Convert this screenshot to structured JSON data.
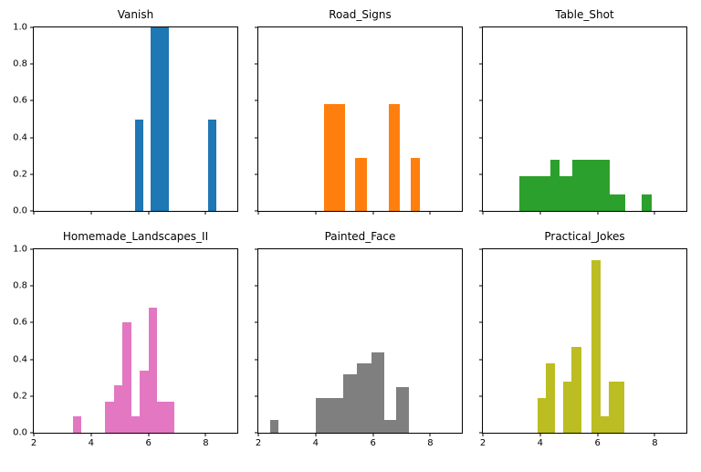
{
  "figure": {
    "background": "#ffffff"
  },
  "chart_data": {
    "type": "histogram",
    "layout": "2x3 subplot grid, shared axes, tick labels only on outer left column and bottom row",
    "xlim": [
      2,
      9.1
    ],
    "ylim": [
      0,
      1.0
    ],
    "xticks": [
      2,
      4,
      6,
      8
    ],
    "xticklabels": [
      "2",
      "4",
      "6",
      "8"
    ],
    "yticks": [
      0,
      0.2,
      0.4,
      0.6,
      0.8,
      1.0
    ],
    "yticklabels": [
      "0.0",
      "0.2",
      "0.4",
      "0.6",
      "0.8",
      "1.0"
    ],
    "grid": false,
    "legend": false,
    "subplots": [
      {
        "title": "Vanish",
        "color": "#1f77b4",
        "bars": [
          {
            "x": 5.52,
            "w": 0.3,
            "h": 0.5
          },
          {
            "x": 6.06,
            "w": 0.66,
            "h": 1.0
          },
          {
            "x": 8.08,
            "w": 0.3,
            "h": 0.5
          }
        ]
      },
      {
        "title": "Road_Signs",
        "color": "#ff7f0e",
        "bars": [
          {
            "x": 4.29,
            "w": 0.72,
            "h": 0.58
          },
          {
            "x": 5.37,
            "w": 0.43,
            "h": 0.29
          },
          {
            "x": 6.55,
            "w": 0.37,
            "h": 0.58
          },
          {
            "x": 7.32,
            "w": 0.31,
            "h": 0.29
          }
        ]
      },
      {
        "title": "Table_Shot",
        "color": "#2ca02c",
        "bars": [
          {
            "x": 3.27,
            "w": 1.08,
            "h": 0.19
          },
          {
            "x": 4.35,
            "w": 0.31,
            "h": 0.28
          },
          {
            "x": 4.66,
            "w": 0.47,
            "h": 0.19
          },
          {
            "x": 5.13,
            "w": 1.3,
            "h": 0.28
          },
          {
            "x": 6.43,
            "w": 0.55,
            "h": 0.09
          },
          {
            "x": 7.55,
            "w": 0.35,
            "h": 0.09
          }
        ]
      },
      {
        "title": "Homemade_Landscapes_II",
        "color": "#e377c2",
        "bars": [
          {
            "x": 3.37,
            "w": 0.28,
            "h": 0.09
          },
          {
            "x": 4.48,
            "w": 0.31,
            "h": 0.17
          },
          {
            "x": 4.79,
            "w": 0.29,
            "h": 0.26
          },
          {
            "x": 5.08,
            "w": 0.32,
            "h": 0.6
          },
          {
            "x": 5.4,
            "w": 0.28,
            "h": 0.09
          },
          {
            "x": 5.68,
            "w": 0.32,
            "h": 0.34
          },
          {
            "x": 6.0,
            "w": 0.29,
            "h": 0.68
          },
          {
            "x": 6.29,
            "w": 0.6,
            "h": 0.17
          }
        ]
      },
      {
        "title": "Painted_Face",
        "color": "#7f7f7f",
        "bars": [
          {
            "x": 2.4,
            "w": 0.3,
            "h": 0.07
          },
          {
            "x": 4.0,
            "w": 0.95,
            "h": 0.19
          },
          {
            "x": 4.95,
            "w": 0.5,
            "h": 0.32
          },
          {
            "x": 5.45,
            "w": 0.5,
            "h": 0.38
          },
          {
            "x": 5.95,
            "w": 0.45,
            "h": 0.44
          },
          {
            "x": 6.4,
            "w": 0.4,
            "h": 0.07
          },
          {
            "x": 6.8,
            "w": 0.45,
            "h": 0.25
          }
        ]
      },
      {
        "title": "Practical_Jokes",
        "color": "#bcbd22",
        "bars": [
          {
            "x": 3.9,
            "w": 0.3,
            "h": 0.19
          },
          {
            "x": 4.2,
            "w": 0.3,
            "h": 0.38
          },
          {
            "x": 4.8,
            "w": 0.3,
            "h": 0.28
          },
          {
            "x": 5.1,
            "w": 0.35,
            "h": 0.47
          },
          {
            "x": 5.8,
            "w": 0.3,
            "h": 0.94
          },
          {
            "x": 6.1,
            "w": 0.3,
            "h": 0.09
          },
          {
            "x": 6.4,
            "w": 0.55,
            "h": 0.28
          }
        ]
      }
    ]
  }
}
